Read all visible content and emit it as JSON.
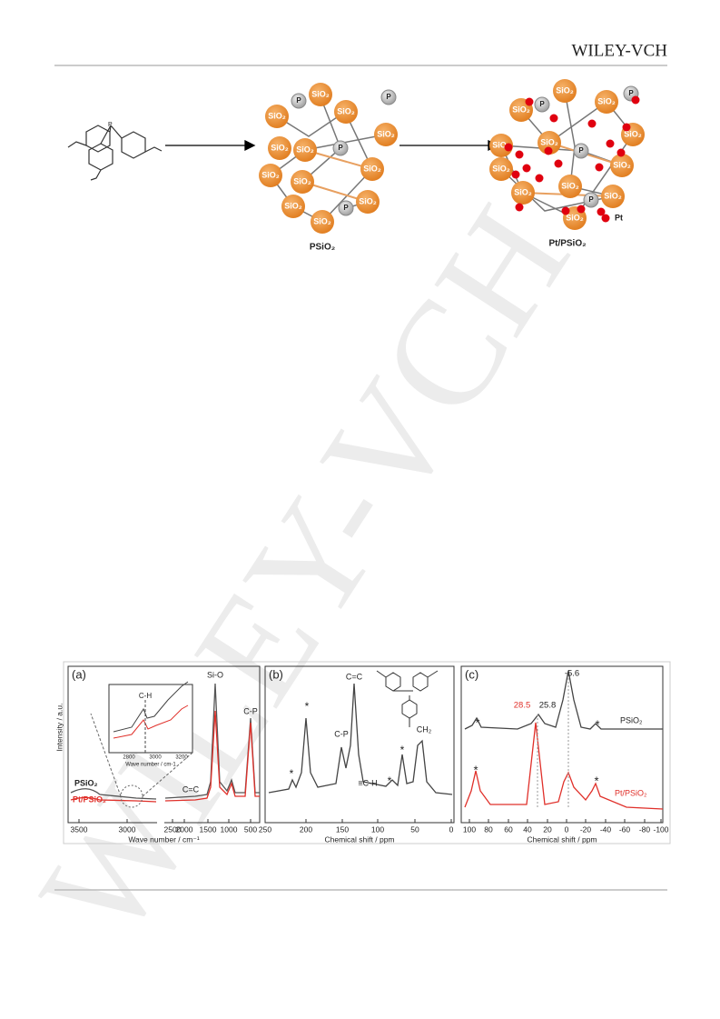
{
  "header": {
    "brand": "WILEY-VCH"
  },
  "watermark": "WILEY-VCH",
  "scheme": {
    "sio2_label": "SiO₂",
    "p_label": "P",
    "pt_legend": "Pt",
    "product1": "PSiO₂",
    "product2": "Pt/PSiO₂"
  },
  "figure": {
    "panels": [
      {
        "label": "(a)",
        "y_label": "Intensity / a.u.",
        "x_label": "Wave number / cm⁻¹",
        "x_ticks": [
          "3500",
          "3000",
          "2500",
          "2000",
          "1500",
          "1000",
          "500"
        ],
        "annotations": [
          "Si-O",
          "C-P",
          "C=C"
        ],
        "legend": [
          "PSiO₂",
          "Pt/PSiO₂"
        ],
        "inset": {
          "label": "C-H",
          "x_ticks": [
            "2800",
            "3000",
            "3200"
          ],
          "x_label": "Wave number / cm-1"
        }
      },
      {
        "label": "(b)",
        "x_label": "Chemical shift / ppm",
        "x_ticks": [
          "250",
          "200",
          "150",
          "100",
          "50",
          "0"
        ],
        "annotations": [
          "C=C",
          "C-P",
          "≡C-H",
          "CH₂"
        ],
        "star": "*"
      },
      {
        "label": "(c)",
        "x_label": "Chemical shift / ppm",
        "x_ticks": [
          "100",
          "80",
          "60",
          "40",
          "20",
          "0",
          "-20",
          "-40",
          "-60",
          "-80",
          "-100"
        ],
        "annotations": [
          "-5.6",
          "28.5",
          "25.8"
        ],
        "legend": [
          "PSiO₂",
          "Pt/PSiO₂"
        ],
        "star": "*"
      }
    ]
  }
}
